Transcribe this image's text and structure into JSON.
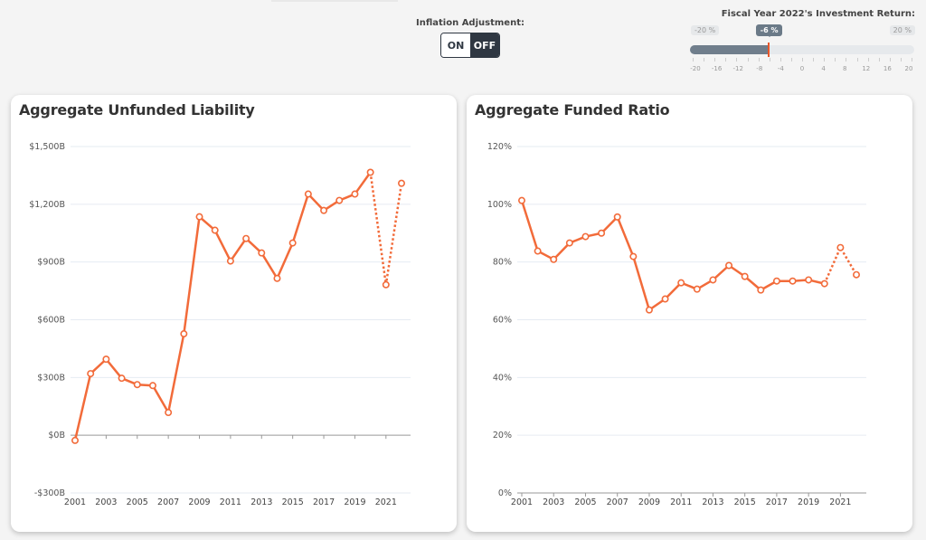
{
  "controls": {
    "inflation": {
      "label": "Inflation Adjustment:",
      "on_label": "ON",
      "off_label": "OFF",
      "selected": "OFF"
    },
    "investment_return": {
      "title": "Fiscal Year 2022's Investment Return:",
      "min_label": "-20 %",
      "max_label": "20 %",
      "value_label": "-6 %",
      "value": -6,
      "min": -20,
      "max": 20,
      "tick_labels": [
        "-20",
        "-16",
        "-12",
        "-8",
        "-4",
        "0",
        "4",
        "8",
        "12",
        "16",
        "20"
      ]
    }
  },
  "colors": {
    "line": "#f26b3a",
    "toggle_dark": "#2f3742",
    "slider_fill": "#707e8c"
  },
  "chart_data": [
    {
      "type": "line",
      "title": "Aggregate Unfunded Liability",
      "xlabel": "",
      "ylabel": "",
      "units": "billions USD",
      "x": [
        2001,
        2002,
        2003,
        2004,
        2005,
        2006,
        2007,
        2008,
        2009,
        2010,
        2011,
        2012,
        2013,
        2014,
        2015,
        2016,
        2017,
        2018,
        2019,
        2020,
        2021,
        2022
      ],
      "x_tick_labels": [
        "2001",
        "2003",
        "2005",
        "2007",
        "2009",
        "2011",
        "2013",
        "2015",
        "2017",
        "2019",
        "2021"
      ],
      "y_tick_labels": [
        "$1,500B",
        "$1,200B",
        "$900B",
        "$600B",
        "$300B",
        "$0B",
        "-$300B"
      ],
      "y_ticks": [
        1500,
        1200,
        900,
        600,
        300,
        0,
        -300
      ],
      "ylim": [
        -300,
        1500
      ],
      "grid": true,
      "series": [
        {
          "name": "Aggregate Unfunded Liability",
          "values": [
            -27,
            320,
            395,
            296,
            263,
            258,
            118,
            527,
            1135,
            1065,
            905,
            1022,
            947,
            815,
            999,
            1253,
            1168,
            1220,
            1253,
            1366,
            782,
            1309
          ],
          "projected_from_index": 19
        }
      ]
    },
    {
      "type": "line",
      "title": "Aggregate Funded Ratio",
      "xlabel": "",
      "ylabel": "",
      "units": "percent",
      "x": [
        2001,
        2002,
        2003,
        2004,
        2005,
        2006,
        2007,
        2008,
        2009,
        2010,
        2011,
        2012,
        2013,
        2014,
        2015,
        2016,
        2017,
        2018,
        2019,
        2020,
        2021,
        2022
      ],
      "x_tick_labels": [
        "2001",
        "2003",
        "2005",
        "2007",
        "2009",
        "2011",
        "2013",
        "2015",
        "2017",
        "2019",
        "2021"
      ],
      "y_tick_labels": [
        "120%",
        "100%",
        "80%",
        "60%",
        "40%",
        "20%",
        "0%"
      ],
      "y_ticks": [
        120,
        100,
        80,
        60,
        40,
        20,
        0
      ],
      "ylim": [
        0,
        120
      ],
      "grid": true,
      "series": [
        {
          "name": "Aggregate Funded Ratio",
          "values": [
            101.3,
            83.8,
            80.9,
            86.6,
            88.8,
            90.0,
            95.6,
            81.9,
            63.4,
            67.2,
            72.8,
            70.6,
            73.8,
            78.8,
            75.0,
            70.3,
            73.4,
            73.4,
            73.8,
            72.5,
            85.0,
            75.6
          ],
          "projected_from_index": 19
        }
      ]
    }
  ]
}
